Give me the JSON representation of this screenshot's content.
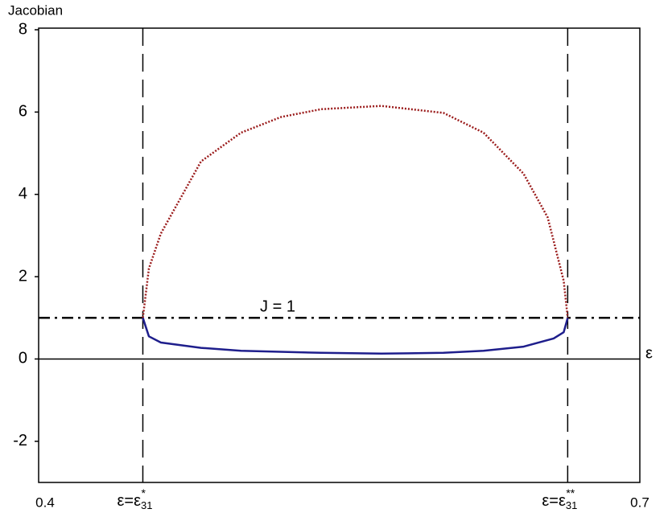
{
  "chart_data": {
    "type": "line",
    "y_label": "Jacobian",
    "x_label": "ε",
    "xlim": [
      0.4,
      0.7
    ],
    "ylim": [
      -3,
      8
    ],
    "xticks": [
      0.4,
      0.7
    ],
    "yticks": [
      -2,
      0,
      2,
      4,
      6,
      8
    ],
    "hline": {
      "value": 1,
      "label": "J = 1"
    },
    "vlines": [
      {
        "value": 0.452,
        "label": "ε=ε",
        "sub": "31",
        "sup": "*"
      },
      {
        "value": 0.664,
        "label": "ε=ε",
        "sub": "31",
        "sup": "**"
      }
    ],
    "series": [
      {
        "color": "#9b1c1c",
        "style": "dotted",
        "x": [
          0.452,
          0.455,
          0.461,
          0.481,
          0.501,
          0.521,
          0.541,
          0.571,
          0.602,
          0.622,
          0.642,
          0.654,
          0.662,
          0.664
        ],
        "values": [
          1,
          2.2,
          3.05,
          4.8,
          5.5,
          5.88,
          6.07,
          6.15,
          5.98,
          5.5,
          4.5,
          3.44,
          1.9,
          1
        ]
      },
      {
        "color": "#1e1e8c",
        "style": "solid",
        "x": [
          0.452,
          0.455,
          0.461,
          0.481,
          0.501,
          0.541,
          0.571,
          0.602,
          0.622,
          0.642,
          0.657,
          0.662,
          0.664
        ],
        "values": [
          1,
          0.55,
          0.4,
          0.27,
          0.2,
          0.15,
          0.13,
          0.15,
          0.2,
          0.3,
          0.5,
          0.65,
          1
        ]
      }
    ]
  }
}
